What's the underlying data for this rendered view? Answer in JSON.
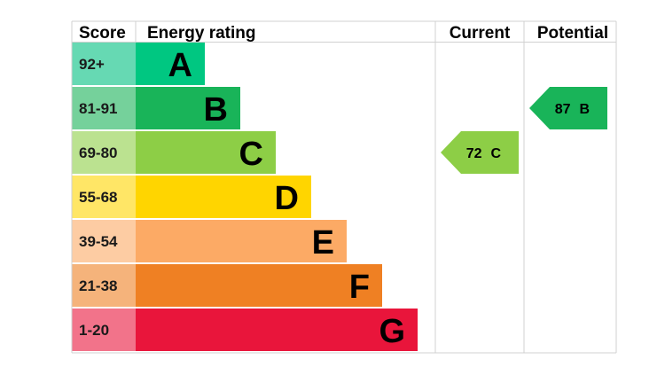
{
  "headers": {
    "score": "Score",
    "energy_rating": "Energy rating",
    "current": "Current",
    "potential": "Potential"
  },
  "chart_data": {
    "type": "bar",
    "title": "",
    "categories": [
      "A",
      "B",
      "C",
      "D",
      "E",
      "F",
      "G"
    ],
    "score_ranges": [
      "92+",
      "81-91",
      "69-80",
      "55-68",
      "39-54",
      "21-38",
      "1-20"
    ],
    "band_colors": [
      "#00c781",
      "#19b459",
      "#8dce46",
      "#ffd500",
      "#fcaa65",
      "#ef8023",
      "#e9153b"
    ],
    "score_cell_colors": [
      "#66d9b3",
      "#75d19b",
      "#bbe290",
      "#ffe666",
      "#fdcca3",
      "#f5b37b",
      "#f2738a"
    ],
    "current": {
      "value": 72,
      "band": "C",
      "label": "72",
      "color": "#8dce46"
    },
    "potential": {
      "value": 87,
      "band": "B",
      "label": "87",
      "color": "#19b459"
    }
  }
}
